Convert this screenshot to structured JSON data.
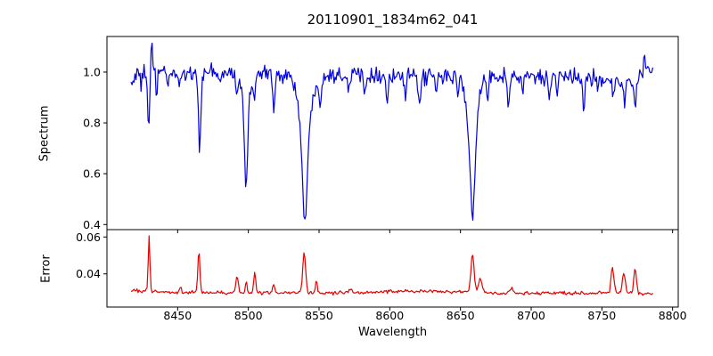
{
  "figure": {
    "title": "20110901_1834m62_041",
    "xlabel": "Wavelength",
    "background": "#ffffff",
    "axis_color": "#000000",
    "text_color": "#000000",
    "xlim": [
      8400,
      8804
    ],
    "x_ticks": [
      8450,
      8500,
      8550,
      8600,
      8650,
      8700,
      8750,
      8800
    ]
  },
  "chart_data": [
    {
      "type": "line",
      "name": "spectrum",
      "ylabel": "Spectrum",
      "color": "#0000dd",
      "line_width": 1.2,
      "ylim": [
        0.38,
        1.14
      ],
      "y_ticks": [
        {
          "v": 0.4,
          "label": "0.4"
        },
        {
          "v": 0.6,
          "label": "0.6"
        },
        {
          "v": 0.8,
          "label": "0.8"
        },
        {
          "v": 1.0,
          "label": "1.0"
        }
      ],
      "x_range": [
        8417,
        8786
      ],
      "n_points": 520,
      "noise_sigma": 0.016,
      "noise_seed": 1234,
      "baseline_anchors": [
        [
          8417,
          0.955
        ],
        [
          8420,
          0.985
        ],
        [
          8428,
          1.0
        ],
        [
          8445,
          0.995
        ],
        [
          8470,
          0.995
        ],
        [
          8520,
          0.995
        ],
        [
          8555,
          0.99
        ],
        [
          8580,
          0.995
        ],
        [
          8620,
          0.975
        ],
        [
          8650,
          0.985
        ],
        [
          8680,
          0.99
        ],
        [
          8710,
          0.975
        ],
        [
          8730,
          0.98
        ],
        [
          8755,
          0.975
        ],
        [
          8770,
          0.97
        ],
        [
          8780,
          1.0
        ],
        [
          8786,
          0.985
        ]
      ],
      "features": [
        {
          "c": 8424.0,
          "amp": -0.055,
          "sig": 0.5
        },
        {
          "c": 8429.5,
          "amp": -0.22,
          "sig": 0.7
        },
        {
          "c": 8431.5,
          "amp": 0.13,
          "sig": 0.5
        },
        {
          "c": 8435.0,
          "amp": -0.09,
          "sig": 0.5
        },
        {
          "c": 8443.0,
          "amp": -0.05,
          "sig": 0.5
        },
        {
          "c": 8451.0,
          "amp": -0.05,
          "sig": 0.6
        },
        {
          "c": 8465.5,
          "amp": -0.28,
          "sig": 0.9
        },
        {
          "c": 8480.0,
          "amp": -0.05,
          "sig": 0.6
        },
        {
          "c": 8492.0,
          "amp": -0.07,
          "sig": 0.8
        },
        {
          "c": 8498.3,
          "amp": -0.3,
          "sig": 1.1
        },
        {
          "c": 8498.3,
          "amp": -0.13,
          "sig": 2.6
        },
        {
          "c": 8504.5,
          "amp": -0.09,
          "sig": 0.8
        },
        {
          "c": 8518.0,
          "amp": -0.14,
          "sig": 0.9
        },
        {
          "c": 8540.0,
          "amp": -0.35,
          "sig": 1.6
        },
        {
          "c": 8540.0,
          "amp": -0.24,
          "sig": 4.2
        },
        {
          "c": 8551.0,
          "amp": -0.1,
          "sig": 0.8
        },
        {
          "c": 8571.0,
          "amp": -0.06,
          "sig": 0.7
        },
        {
          "c": 8582.0,
          "amp": -0.07,
          "sig": 0.7
        },
        {
          "c": 8598.0,
          "amp": -0.1,
          "sig": 0.8
        },
        {
          "c": 8611.0,
          "amp": -0.07,
          "sig": 0.7
        },
        {
          "c": 8621.0,
          "amp": -0.09,
          "sig": 0.8
        },
        {
          "c": 8633.0,
          "amp": -0.06,
          "sig": 0.6
        },
        {
          "c": 8648.0,
          "amp": -0.07,
          "sig": 0.6
        },
        {
          "c": 8658.5,
          "amp": -0.34,
          "sig": 1.5
        },
        {
          "c": 8658.5,
          "amp": -0.23,
          "sig": 3.8
        },
        {
          "c": 8669.0,
          "amp": -0.08,
          "sig": 0.7
        },
        {
          "c": 8684.0,
          "amp": -0.13,
          "sig": 0.9
        },
        {
          "c": 8694.0,
          "amp": -0.07,
          "sig": 0.6
        },
        {
          "c": 8713.0,
          "amp": -0.08,
          "sig": 0.7
        },
        {
          "c": 8718.5,
          "amp": -0.09,
          "sig": 0.6
        },
        {
          "c": 8737.0,
          "amp": -0.11,
          "sig": 0.8
        },
        {
          "c": 8747.0,
          "amp": -0.06,
          "sig": 0.5
        },
        {
          "c": 8758.0,
          "amp": -0.09,
          "sig": 0.8
        },
        {
          "c": 8766.0,
          "amp": -0.1,
          "sig": 0.8
        },
        {
          "c": 8773.5,
          "amp": -0.12,
          "sig": 0.9
        },
        {
          "c": 8780.0,
          "amp": 0.08,
          "sig": 0.6
        }
      ]
    },
    {
      "type": "line",
      "name": "error",
      "ylabel": "Error",
      "color": "#e60000",
      "line_width": 1.2,
      "ylim": [
        0.022,
        0.064
      ],
      "y_ticks": [
        {
          "v": 0.04,
          "label": "0.04"
        },
        {
          "v": 0.06,
          "label": "0.06"
        }
      ],
      "x_range": [
        8417,
        8786
      ],
      "n_points": 520,
      "noise_sigma": 0.00045,
      "noise_seed": 777,
      "baseline_anchors": [
        [
          8417,
          0.031
        ],
        [
          8435,
          0.0302
        ],
        [
          8460,
          0.03
        ],
        [
          8490,
          0.0297
        ],
        [
          8520,
          0.0294
        ],
        [
          8545,
          0.0298
        ],
        [
          8560,
          0.0296
        ],
        [
          8585,
          0.03
        ],
        [
          8605,
          0.0306
        ],
        [
          8625,
          0.0308
        ],
        [
          8645,
          0.0302
        ],
        [
          8665,
          0.03
        ],
        [
          8690,
          0.0295
        ],
        [
          8715,
          0.0297
        ],
        [
          8740,
          0.0294
        ],
        [
          8760,
          0.03
        ],
        [
          8775,
          0.0296
        ],
        [
          8786,
          0.0293
        ]
      ],
      "features": [
        {
          "c": 8429.8,
          "amp": 0.03,
          "sig": 0.6
        },
        {
          "c": 8452.0,
          "amp": 0.003,
          "sig": 0.7
        },
        {
          "c": 8465.0,
          "amp": 0.023,
          "sig": 0.7
        },
        {
          "c": 8492.0,
          "amp": 0.009,
          "sig": 0.9
        },
        {
          "c": 8498.5,
          "amp": 0.006,
          "sig": 0.6
        },
        {
          "c": 8504.5,
          "amp": 0.012,
          "sig": 0.7
        },
        {
          "c": 8518.0,
          "amp": 0.004,
          "sig": 0.8
        },
        {
          "c": 8539.5,
          "amp": 0.022,
          "sig": 1.0
        },
        {
          "c": 8548.0,
          "amp": 0.006,
          "sig": 0.7
        },
        {
          "c": 8572.0,
          "amp": 0.002,
          "sig": 1.0
        },
        {
          "c": 8658.5,
          "amp": 0.021,
          "sig": 1.1
        },
        {
          "c": 8664.0,
          "amp": 0.007,
          "sig": 1.3
        },
        {
          "c": 8686.0,
          "amp": 0.003,
          "sig": 1.0
        },
        {
          "c": 8757.5,
          "amp": 0.013,
          "sig": 1.0
        },
        {
          "c": 8765.5,
          "amp": 0.0105,
          "sig": 1.0
        },
        {
          "c": 8773.5,
          "amp": 0.0135,
          "sig": 0.9
        }
      ]
    }
  ]
}
